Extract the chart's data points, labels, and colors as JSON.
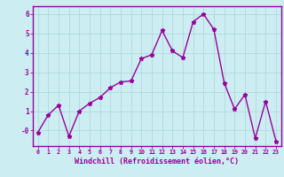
{
  "x": [
    0,
    1,
    2,
    3,
    4,
    5,
    6,
    7,
    8,
    9,
    10,
    11,
    12,
    13,
    14,
    15,
    16,
    17,
    18,
    19,
    20,
    21,
    22,
    23
  ],
  "y": [
    -0.1,
    0.8,
    1.3,
    -0.3,
    1.0,
    1.4,
    1.7,
    2.2,
    2.5,
    2.55,
    3.7,
    3.9,
    5.15,
    4.1,
    3.75,
    5.6,
    6.0,
    5.2,
    2.45,
    1.1,
    1.85,
    -0.4,
    1.5,
    -0.55
  ],
  "line_color": "#990099",
  "marker": "*",
  "marker_size": 3.5,
  "xlim": [
    -0.5,
    23.5
  ],
  "ylim": [
    -0.8,
    6.4
  ],
  "yticks": [
    0,
    1,
    2,
    3,
    4,
    5,
    6
  ],
  "ytick_labels": [
    "-0",
    "1",
    "2",
    "3",
    "4",
    "5",
    "6"
  ],
  "xticks": [
    0,
    1,
    2,
    3,
    4,
    5,
    6,
    7,
    8,
    9,
    10,
    11,
    12,
    13,
    14,
    15,
    16,
    17,
    18,
    19,
    20,
    21,
    22,
    23
  ],
  "xlabel": "Windchill (Refroidissement éolien,°C)",
  "background_color": "#cceef2",
  "grid_color": "#aad4d8",
  "axis_color": "#990099",
  "tick_color": "#990099",
  "label_color": "#990099",
  "line_width": 1.0
}
